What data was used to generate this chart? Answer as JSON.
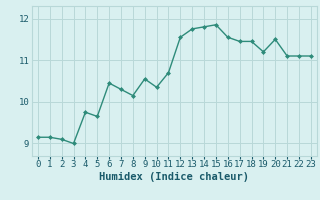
{
  "x": [
    0,
    1,
    2,
    3,
    4,
    5,
    6,
    7,
    8,
    9,
    10,
    11,
    12,
    13,
    14,
    15,
    16,
    17,
    18,
    19,
    20,
    21,
    22,
    23
  ],
  "y": [
    9.15,
    9.15,
    9.1,
    9.0,
    9.75,
    9.65,
    10.45,
    10.3,
    10.15,
    10.55,
    10.35,
    10.7,
    11.55,
    11.75,
    11.8,
    11.85,
    11.55,
    11.45,
    11.45,
    11.2,
    11.5,
    11.1,
    11.1,
    11.1
  ],
  "line_color": "#2e8b7a",
  "marker": "D",
  "marker_size": 2.0,
  "bg_color": "#d9f0f0",
  "grid_color": "#b8d8d8",
  "xlabel": "Humidex (Indice chaleur)",
  "xlabel_color": "#1a5a6a",
  "xlabel_fontsize": 7.5,
  "yticks": [
    9,
    10,
    11,
    12
  ],
  "ylim": [
    8.7,
    12.3
  ],
  "xlim": [
    -0.5,
    23.5
  ],
  "xtick_labels": [
    "0",
    "1",
    "2",
    "3",
    "4",
    "5",
    "6",
    "7",
    "8",
    "9",
    "10",
    "11",
    "12",
    "13",
    "14",
    "15",
    "16",
    "17",
    "18",
    "19",
    "20",
    "21",
    "22",
    "23"
  ],
  "tick_color": "#1a5a6a",
  "tick_fontsize": 6.5,
  "line_width": 1.0
}
